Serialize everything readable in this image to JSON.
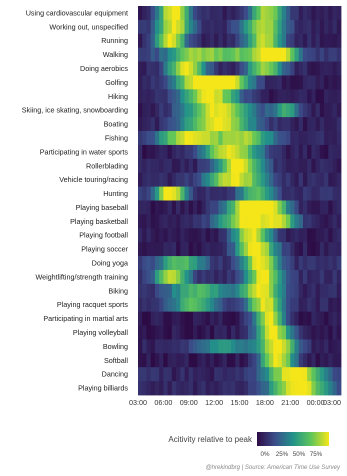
{
  "chart_data": {
    "type": "heatmap",
    "title": "",
    "xlabel": "",
    "ylabel": "",
    "legend": {
      "title": "Acitivity relative to peak",
      "ticks": [
        "0%",
        "25%",
        "50%",
        "75%"
      ],
      "stops": [
        "#2d0b45",
        "#3b4d8a",
        "#22928a",
        "#5fc55a",
        "#f5e61a"
      ]
    },
    "x_ticks": [
      "03:00",
      "06:00",
      "09:00",
      "12:00",
      "15:00",
      "18:00",
      "21:00",
      "00:00",
      "03:00"
    ],
    "rows": [
      {
        "label": "Using cardiovascular equipment",
        "peaks": [
          [
            7.2,
            1.4,
            0.95
          ],
          [
            18.3,
            1.5,
            0.8
          ]
        ],
        "base": 0.08
      },
      {
        "label": "Working out, unspecified",
        "peaks": [
          [
            7.3,
            1.5,
            0.9
          ],
          [
            17.8,
            1.8,
            0.8
          ]
        ],
        "base": 0.1
      },
      {
        "label": "Running",
        "peaks": [
          [
            6.8,
            1.3,
            0.95
          ],
          [
            18.0,
            1.6,
            0.85
          ]
        ],
        "base": 0.08
      },
      {
        "label": "Walking",
        "peaks": [
          [
            9.5,
            2.5,
            0.6
          ],
          [
            15.5,
            3.0,
            0.55
          ],
          [
            19.5,
            1.6,
            0.8
          ]
        ],
        "base": 0.15
      },
      {
        "label": "Doing aerobics",
        "peaks": [
          [
            8.7,
            1.6,
            0.95
          ],
          [
            18.0,
            1.6,
            0.75
          ]
        ],
        "base": 0.08
      },
      {
        "label": "Golfing",
        "peaks": [
          [
            10.5,
            2.5,
            0.95
          ],
          [
            14.0,
            2.0,
            0.7
          ]
        ],
        "base": 0.06
      },
      {
        "label": "Hiking",
        "peaks": [
          [
            11.5,
            2.5,
            0.95
          ]
        ],
        "base": 0.06
      },
      {
        "label": "Skiing, ice skating, snowboarding",
        "peaks": [
          [
            12.5,
            3.0,
            0.95
          ],
          [
            20.5,
            1.2,
            0.5
          ]
        ],
        "base": 0.06
      },
      {
        "label": "Boating",
        "peaks": [
          [
            12.5,
            3.0,
            0.95
          ]
        ],
        "base": 0.07
      },
      {
        "label": "Fishing",
        "peaks": [
          [
            9.0,
            2.5,
            0.9
          ],
          [
            15.5,
            2.5,
            0.75
          ]
        ],
        "base": 0.1
      },
      {
        "label": "Participating in water sports",
        "peaks": [
          [
            14.0,
            2.5,
            0.95
          ]
        ],
        "base": 0.06
      },
      {
        "label": "Rollerblading",
        "peaks": [
          [
            15.0,
            2.0,
            0.95
          ]
        ],
        "base": 0.08
      },
      {
        "label": "Vehicle touring/racing",
        "peaks": [
          [
            14.5,
            2.5,
            0.9
          ]
        ],
        "base": 0.1
      },
      {
        "label": "Hunting",
        "peaks": [
          [
            6.8,
            1.3,
            0.95
          ],
          [
            17.0,
            1.5,
            0.6
          ]
        ],
        "base": 0.12
      },
      {
        "label": "Playing baseball",
        "peaks": [
          [
            16.0,
            2.0,
            0.95
          ],
          [
            19.0,
            1.5,
            0.7
          ]
        ],
        "base": 0.06
      },
      {
        "label": "Playing basketball",
        "peaks": [
          [
            16.0,
            2.5,
            0.95
          ],
          [
            20.0,
            1.5,
            0.6
          ]
        ],
        "base": 0.06
      },
      {
        "label": "Playing football",
        "peaks": [
          [
            16.5,
            1.6,
            0.95
          ]
        ],
        "base": 0.06
      },
      {
        "label": "Playing soccer",
        "peaks": [
          [
            17.0,
            1.8,
            0.95
          ]
        ],
        "base": 0.06
      },
      {
        "label": "Doing yoga",
        "peaks": [
          [
            8.0,
            2.0,
            0.6
          ],
          [
            17.5,
            1.5,
            0.9
          ]
        ],
        "base": 0.12
      },
      {
        "label": "Weightlifting/strength training",
        "peaks": [
          [
            7.0,
            1.5,
            0.75
          ],
          [
            17.8,
            1.5,
            0.9
          ]
        ],
        "base": 0.12
      },
      {
        "label": "Biking",
        "peaks": [
          [
            10.0,
            2.5,
            0.6
          ],
          [
            17.5,
            1.8,
            0.9
          ]
        ],
        "base": 0.1
      },
      {
        "label": "Playing racquet sports",
        "peaks": [
          [
            9.5,
            2.0,
            0.6
          ],
          [
            18.0,
            1.5,
            0.9
          ]
        ],
        "base": 0.1
      },
      {
        "label": "Participating in martial arts",
        "peaks": [
          [
            18.5,
            1.3,
            0.95
          ]
        ],
        "base": 0.05
      },
      {
        "label": "Playing volleyball",
        "peaks": [
          [
            19.0,
            1.5,
            0.95
          ]
        ],
        "base": 0.05
      },
      {
        "label": "Bowling",
        "peaks": [
          [
            19.5,
            1.6,
            0.95
          ],
          [
            13.0,
            2.5,
            0.45
          ]
        ],
        "base": 0.08
      },
      {
        "label": "Softball",
        "peaks": [
          [
            19.5,
            1.5,
            0.95
          ]
        ],
        "base": 0.05
      },
      {
        "label": "Dancing",
        "peaks": [
          [
            21.5,
            2.5,
            0.95
          ]
        ],
        "base": 0.1
      },
      {
        "label": "Playing billiards",
        "peaks": [
          [
            22.0,
            2.5,
            0.95
          ]
        ],
        "base": 0.1
      }
    ],
    "x_range_hours": [
      3,
      27
    ],
    "credit": "@hrekindbrg | Source: American Time Use Survey"
  }
}
